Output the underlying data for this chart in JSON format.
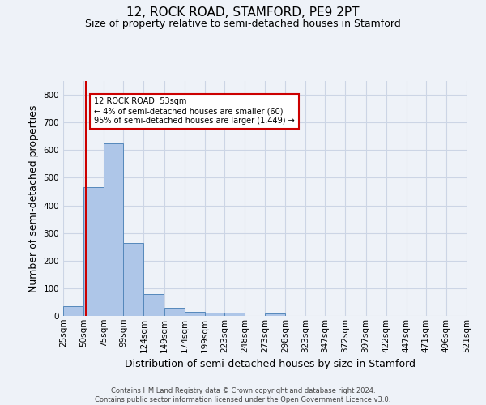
{
  "title": "12, ROCK ROAD, STAMFORD, PE9 2PT",
  "subtitle": "Size of property relative to semi-detached houses in Stamford",
  "xlabel": "Distribution of semi-detached houses by size in Stamford",
  "ylabel": "Number of semi-detached properties",
  "categories": [
    "25sqm",
    "50sqm",
    "75sqm",
    "99sqm",
    "124sqm",
    "149sqm",
    "174sqm",
    "199sqm",
    "223sqm",
    "248sqm",
    "273sqm",
    "298sqm",
    "323sqm",
    "347sqm",
    "372sqm",
    "397sqm",
    "422sqm",
    "447sqm",
    "471sqm",
    "496sqm",
    "521sqm"
  ],
  "bin_edges": [
    25,
    50,
    75,
    99,
    124,
    149,
    174,
    199,
    223,
    248,
    273,
    298,
    323,
    347,
    372,
    397,
    422,
    447,
    471,
    496,
    521
  ],
  "values": [
    35,
    465,
    625,
    265,
    80,
    30,
    15,
    12,
    12,
    0,
    10,
    0,
    0,
    0,
    0,
    0,
    0,
    0,
    0,
    0
  ],
  "bar_color": "#aec6e8",
  "bar_edge_color": "#5588bb",
  "grid_color": "#ccd5e5",
  "background_color": "#eef2f8",
  "vline_x": 53,
  "vline_color": "#cc0000",
  "annotation_text": "12 ROCK ROAD: 53sqm\n← 4% of semi-detached houses are smaller (60)\n95% of semi-detached houses are larger (1,449) →",
  "annotation_box_color": "#ffffff",
  "annotation_box_edge": "#cc0000",
  "ylim": [
    0,
    850
  ],
  "yticks": [
    0,
    100,
    200,
    300,
    400,
    500,
    600,
    700,
    800
  ],
  "footer": "Contains HM Land Registry data © Crown copyright and database right 2024.\nContains public sector information licensed under the Open Government Licence v3.0.",
  "title_fontsize": 11,
  "subtitle_fontsize": 9,
  "axis_label_fontsize": 9,
  "tick_fontsize": 7.5,
  "footer_fontsize": 6
}
